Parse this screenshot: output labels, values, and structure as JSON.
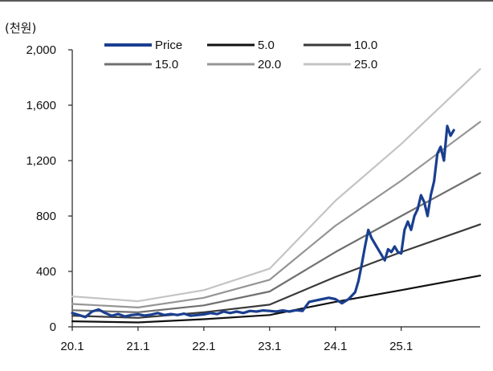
{
  "chart_data": {
    "type": "line",
    "unit_label": "(천원)",
    "x_ticks": [
      "20.1",
      "21.1",
      "22.1",
      "23.1",
      "24.1",
      "25.1"
    ],
    "y_ticks": [
      "0",
      "400",
      "800",
      "1,200",
      "1,600",
      "2,000"
    ],
    "ylim": [
      0,
      2000
    ],
    "xlim": [
      0,
      6.2
    ],
    "grid": false,
    "legend_position": "top",
    "series": [
      {
        "name": "Price",
        "color": "#1a3f8f",
        "points": [
          [
            0,
            100
          ],
          [
            0.1,
            85
          ],
          [
            0.2,
            70
          ],
          [
            0.3,
            110
          ],
          [
            0.4,
            125
          ],
          [
            0.5,
            100
          ],
          [
            0.6,
            80
          ],
          [
            0.7,
            92
          ],
          [
            0.8,
            75
          ],
          [
            0.9,
            85
          ],
          [
            1.0,
            90
          ],
          [
            1.1,
            82
          ],
          [
            1.2,
            88
          ],
          [
            1.3,
            100
          ],
          [
            1.4,
            85
          ],
          [
            1.5,
            92
          ],
          [
            1.6,
            85
          ],
          [
            1.7,
            95
          ],
          [
            1.8,
            80
          ],
          [
            1.9,
            85
          ],
          [
            2.0,
            90
          ],
          [
            2.1,
            100
          ],
          [
            2.2,
            92
          ],
          [
            2.3,
            110
          ],
          [
            2.4,
            100
          ],
          [
            2.5,
            110
          ],
          [
            2.6,
            100
          ],
          [
            2.7,
            115
          ],
          [
            2.8,
            110
          ],
          [
            2.9,
            118
          ],
          [
            3.0,
            115
          ],
          [
            3.1,
            110
          ],
          [
            3.2,
            118
          ],
          [
            3.3,
            110
          ],
          [
            3.4,
            120
          ],
          [
            3.5,
            115
          ],
          [
            3.6,
            180
          ],
          [
            3.7,
            190
          ],
          [
            3.8,
            200
          ],
          [
            3.9,
            210
          ],
          [
            4.0,
            200
          ],
          [
            4.1,
            170
          ],
          [
            4.2,
            200
          ],
          [
            4.3,
            250
          ],
          [
            4.35,
            330
          ],
          [
            4.4,
            450
          ],
          [
            4.45,
            580
          ],
          [
            4.5,
            700
          ],
          [
            4.55,
            640
          ],
          [
            4.6,
            600
          ],
          [
            4.65,
            560
          ],
          [
            4.7,
            520
          ],
          [
            4.75,
            480
          ],
          [
            4.8,
            560
          ],
          [
            4.85,
            540
          ],
          [
            4.9,
            580
          ],
          [
            4.95,
            540
          ],
          [
            5.0,
            530
          ],
          [
            5.05,
            700
          ],
          [
            5.1,
            760
          ],
          [
            5.15,
            700
          ],
          [
            5.2,
            800
          ],
          [
            5.25,
            850
          ],
          [
            5.3,
            950
          ],
          [
            5.35,
            900
          ],
          [
            5.4,
            800
          ],
          [
            5.45,
            950
          ],
          [
            5.5,
            1050
          ],
          [
            5.55,
            1250
          ],
          [
            5.6,
            1300
          ],
          [
            5.65,
            1200
          ],
          [
            5.7,
            1450
          ],
          [
            5.75,
            1380
          ],
          [
            5.8,
            1420
          ]
        ]
      },
      {
        "name": "5.0",
        "color": "#111111",
        "points": [
          [
            0,
            40
          ],
          [
            1,
            32
          ],
          [
            2,
            55
          ],
          [
            3,
            85
          ],
          [
            4,
            180
          ],
          [
            5,
            265
          ],
          [
            6.2,
            370
          ]
        ]
      },
      {
        "name": "10.0",
        "color": "#3a3a3a",
        "points": [
          [
            0,
            80
          ],
          [
            1,
            65
          ],
          [
            2,
            105
          ],
          [
            3,
            160
          ],
          [
            4,
            360
          ],
          [
            5,
            540
          ],
          [
            6.2,
            740
          ]
        ]
      },
      {
        "name": "15.0",
        "color": "#707070",
        "points": [
          [
            0,
            120
          ],
          [
            1,
            105
          ],
          [
            2,
            155
          ],
          [
            3,
            255
          ],
          [
            4,
            540
          ],
          [
            5,
            800
          ],
          [
            6.2,
            1110
          ]
        ]
      },
      {
        "name": "20.0",
        "color": "#959595",
        "points": [
          [
            0,
            165
          ],
          [
            1,
            140
          ],
          [
            2,
            210
          ],
          [
            3,
            340
          ],
          [
            4,
            730
          ],
          [
            5,
            1055
          ],
          [
            6.2,
            1480
          ]
        ]
      },
      {
        "name": "25.0",
        "color": "#c4c4c4",
        "points": [
          [
            0,
            220
          ],
          [
            1,
            185
          ],
          [
            2,
            265
          ],
          [
            3,
            420
          ],
          [
            4,
            910
          ],
          [
            5,
            1320
          ],
          [
            6.2,
            1860
          ]
        ]
      }
    ]
  }
}
